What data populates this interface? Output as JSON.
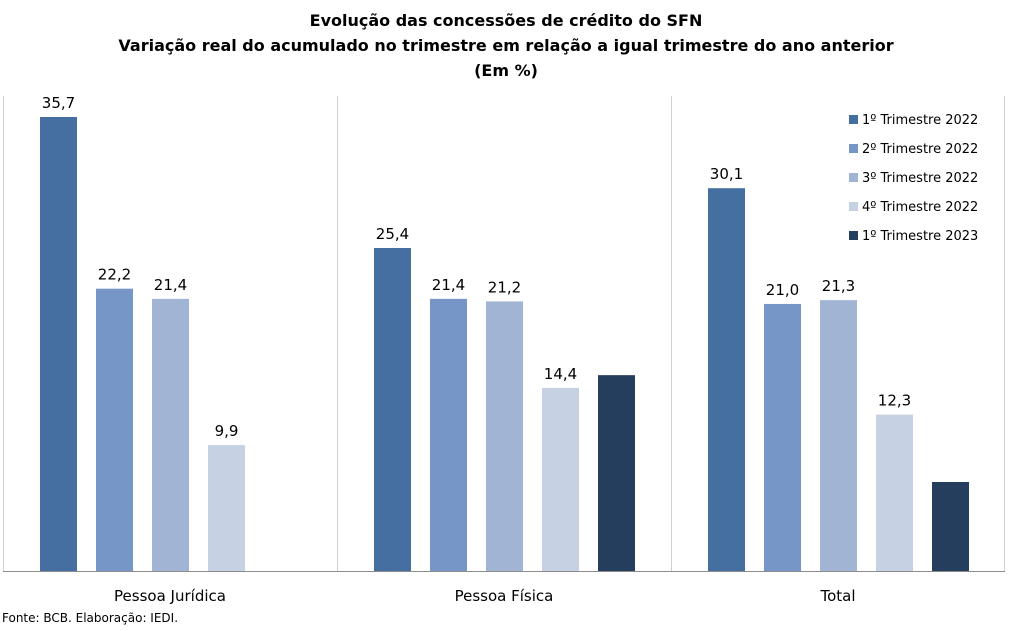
{
  "chart_data": {
    "type": "bar",
    "title": "Evolução das concessões de crédito do SFN",
    "subtitle": "Variação real do acumulado no trimestre em relação a igual trimestre do ano anterior",
    "unit_note": "(Em %)",
    "categories": [
      "Pessoa Jurídica",
      "Pessoa Física",
      "Total"
    ],
    "series": [
      {
        "name": "1º Trimestre 2022",
        "color": "#456FA1",
        "values": [
          35.7,
          25.4,
          30.1
        ],
        "labels": [
          "35,7",
          "25,4",
          "30,1"
        ]
      },
      {
        "name": "2º Trimestre 2022",
        "color": "#7596C6",
        "values": [
          22.2,
          21.4,
          21.0
        ],
        "labels": [
          "22,2",
          "21,4",
          "21,0"
        ]
      },
      {
        "name": "3º Trimestre 2022",
        "color": "#A2B4D4",
        "values": [
          21.4,
          21.2,
          21.3
        ],
        "labels": [
          "21,4",
          "21,2",
          "21,3"
        ]
      },
      {
        "name": "4º Trimestre 2022",
        "color": "#C6D1E4",
        "values": [
          9.9,
          14.4,
          12.3
        ],
        "labels": [
          "9,9",
          "14,4",
          "12,3"
        ]
      },
      {
        "name": "1º Trimestre 2023",
        "color": "#253E5E",
        "values": [
          null,
          15.4,
          7.0
        ],
        "labels": [
          "",
          "",
          ""
        ]
      }
    ],
    "ylim": [
      0,
      38
    ],
    "grid": false,
    "legend_position": "top-right",
    "xlabel": "",
    "ylabel": ""
  },
  "source_note": "Fonte: BCB. Elaboração: IEDI."
}
